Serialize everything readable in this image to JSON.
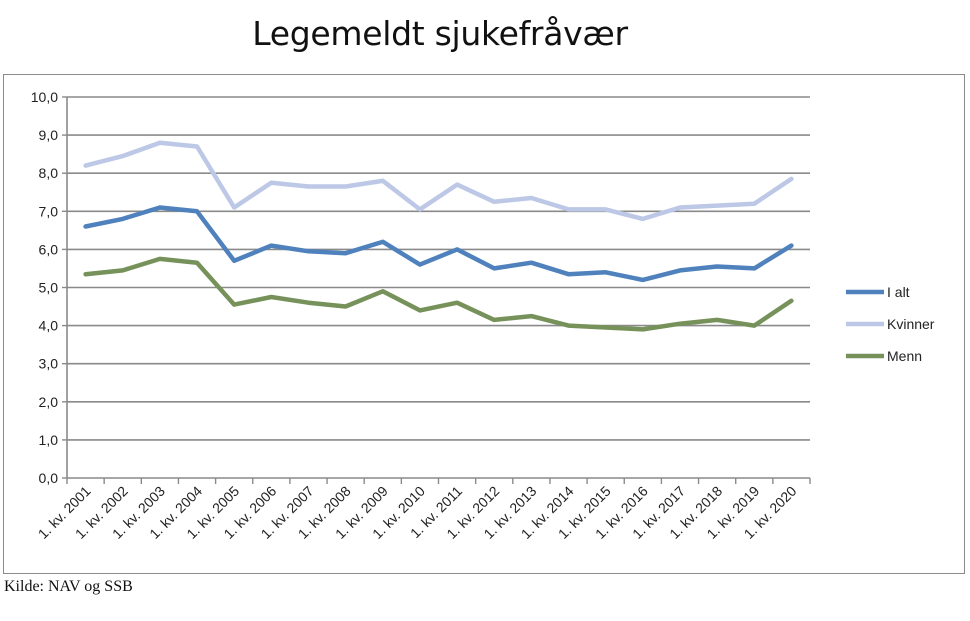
{
  "title": "Legemeldt sjukefråvær",
  "source": "Kilde: NAV og SSB",
  "chart_data": {
    "type": "line",
    "title": "Legemeldt sjukefråvær",
    "xlabel": "",
    "ylabel": "",
    "ylim": [
      0,
      10
    ],
    "yticks": [
      "0,0",
      "1,0",
      "2,0",
      "3,0",
      "4,0",
      "5,0",
      "6,0",
      "7,0",
      "8,0",
      "9,0",
      "10,0"
    ],
    "categories": [
      "1. kv. 2001",
      "1. kv. 2002",
      "1. kv. 2003",
      "1. kv. 2004",
      "1. kv. 2005",
      "1. kv. 2006",
      "1. kv. 2007",
      "1. kv. 2008",
      "1. kv. 2009",
      "1. kv. 2010",
      "1. kv. 2011",
      "1. kv. 2012",
      "1. kv. 2013",
      "1. kv. 2014",
      "1. kv. 2015",
      "1. kv. 2016",
      "1. kv. 2017",
      "1. kv. 2018",
      "1. kv. 2019",
      "1. kv. 2020"
    ],
    "grid": true,
    "legend_position": "right",
    "series": [
      {
        "name": "I alt",
        "color": "#4f81bd",
        "values": [
          6.6,
          6.8,
          7.1,
          7.0,
          5.7,
          6.1,
          5.95,
          5.9,
          6.2,
          5.6,
          6.0,
          5.5,
          5.65,
          5.35,
          5.4,
          5.2,
          5.45,
          5.55,
          5.5,
          6.1
        ]
      },
      {
        "name": "Kvinner",
        "color": "#bcc8e6",
        "values": [
          8.2,
          8.45,
          8.8,
          8.7,
          7.1,
          7.75,
          7.65,
          7.65,
          7.8,
          7.05,
          7.7,
          7.25,
          7.35,
          7.05,
          7.05,
          6.8,
          7.1,
          7.15,
          7.2,
          7.85
        ]
      },
      {
        "name": "Menn",
        "color": "#76925a",
        "values": [
          5.35,
          5.45,
          5.75,
          5.65,
          4.55,
          4.75,
          4.6,
          4.5,
          4.9,
          4.4,
          4.6,
          4.15,
          4.25,
          4.0,
          3.95,
          3.9,
          4.05,
          4.15,
          4.0,
          4.65
        ]
      }
    ]
  }
}
